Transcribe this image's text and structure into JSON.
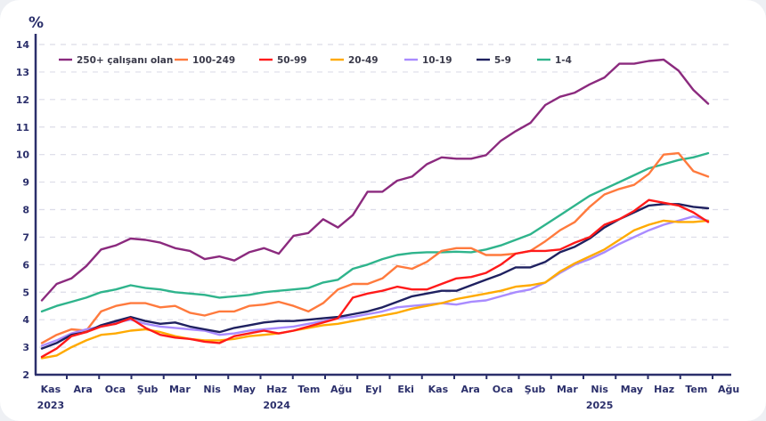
{
  "chart_data": {
    "type": "line",
    "title": "",
    "ylabel": "%",
    "xlabel": "",
    "ylim": [
      2,
      14
    ],
    "yticks": [
      2,
      3,
      4,
      5,
      6,
      7,
      8,
      9,
      10,
      11,
      12,
      13,
      14
    ],
    "grid": true,
    "legend_position": "top-left",
    "x_month_labels": [
      "Kas",
      "Ara",
      "Oca",
      "Şub",
      "Mar",
      "Nis",
      "May",
      "Haz",
      "Tem",
      "Ağu",
      "Eyl",
      "Eki",
      "Kas",
      "Ara",
      "Oca",
      "Şub",
      "Mar",
      "Nis",
      "May",
      "Haz",
      "Tem",
      "Ağu"
    ],
    "x_year_labels": [
      {
        "label": "2023",
        "month_index": 0
      },
      {
        "label": "2024",
        "month_index": 7
      },
      {
        "label": "2025",
        "month_index": 17
      }
    ],
    "points_per_series": 46,
    "series": [
      {
        "name": "250+ çalışanı olan",
        "color": "#8b2a7e",
        "values": [
          4.7,
          5.3,
          5.5,
          5.95,
          6.55,
          6.7,
          6.95,
          6.9,
          6.8,
          6.6,
          6.5,
          6.2,
          6.3,
          6.15,
          6.45,
          6.6,
          6.4,
          7.05,
          7.15,
          7.65,
          7.35,
          7.8,
          8.65,
          8.65,
          9.05,
          9.2,
          9.65,
          9.9,
          9.85,
          9.85,
          9.98,
          10.5,
          10.85,
          11.15,
          11.8,
          12.1,
          12.25,
          12.55,
          12.8,
          13.3,
          13.3,
          13.4,
          13.45,
          13.05,
          12.35,
          11.85
        ]
      },
      {
        "name": "100-249",
        "color": "#ff7a3d",
        "values": [
          3.15,
          3.45,
          3.65,
          3.6,
          4.3,
          4.5,
          4.6,
          4.6,
          4.45,
          4.5,
          4.25,
          4.15,
          4.3,
          4.3,
          4.5,
          4.55,
          4.65,
          4.5,
          4.3,
          4.6,
          5.1,
          5.3,
          5.3,
          5.5,
          5.95,
          5.85,
          6.1,
          6.5,
          6.6,
          6.6,
          6.35,
          6.35,
          6.4,
          6.5,
          6.85,
          7.25,
          7.55,
          8.1,
          8.55,
          8.75,
          8.9,
          9.3,
          10.0,
          10.05,
          9.4,
          9.2
        ]
      },
      {
        "name": "50-99",
        "color": "#ff1a1a",
        "values": [
          2.65,
          2.95,
          3.4,
          3.55,
          3.75,
          3.85,
          4.05,
          3.7,
          3.45,
          3.35,
          3.3,
          3.2,
          3.15,
          3.4,
          3.5,
          3.6,
          3.5,
          3.6,
          3.75,
          3.9,
          4.05,
          4.8,
          4.95,
          5.05,
          5.2,
          5.1,
          5.1,
          5.3,
          5.5,
          5.55,
          5.7,
          6.0,
          6.4,
          6.5,
          6.5,
          6.55,
          6.8,
          7.0,
          7.45,
          7.65,
          7.95,
          8.35,
          8.25,
          8.15,
          7.9,
          7.55
        ]
      },
      {
        "name": "20-49",
        "color": "#ffaa00",
        "values": [
          2.6,
          2.7,
          3.0,
          3.25,
          3.45,
          3.5,
          3.6,
          3.65,
          3.55,
          3.4,
          3.3,
          3.25,
          3.25,
          3.3,
          3.4,
          3.45,
          3.5,
          3.6,
          3.7,
          3.8,
          3.85,
          3.95,
          4.05,
          4.15,
          4.25,
          4.4,
          4.5,
          4.6,
          4.75,
          4.85,
          4.95,
          5.05,
          5.2,
          5.25,
          5.35,
          5.75,
          6.05,
          6.3,
          6.55,
          6.9,
          7.25,
          7.45,
          7.6,
          7.55,
          7.55,
          7.6
        ]
      },
      {
        "name": "10-19",
        "color": "#a98bff",
        "values": [
          3.05,
          3.25,
          3.5,
          3.65,
          3.75,
          3.9,
          4.0,
          3.85,
          3.75,
          3.7,
          3.65,
          3.6,
          3.45,
          3.5,
          3.6,
          3.65,
          3.7,
          3.75,
          3.85,
          3.95,
          4.05,
          4.1,
          4.2,
          4.3,
          4.45,
          4.5,
          4.55,
          4.6,
          4.55,
          4.65,
          4.7,
          4.85,
          5.0,
          5.1,
          5.35,
          5.7,
          6.0,
          6.2,
          6.45,
          6.75,
          7.0,
          7.25,
          7.45,
          7.6,
          7.75,
          7.6
        ]
      },
      {
        "name": "5-9",
        "color": "#1f2160",
        "values": [
          2.95,
          3.15,
          3.45,
          3.55,
          3.8,
          3.95,
          4.1,
          3.95,
          3.85,
          3.9,
          3.75,
          3.65,
          3.55,
          3.7,
          3.8,
          3.9,
          3.95,
          3.95,
          4.0,
          4.05,
          4.1,
          4.2,
          4.3,
          4.45,
          4.65,
          4.85,
          4.95,
          5.05,
          5.05,
          5.25,
          5.45,
          5.65,
          5.9,
          5.9,
          6.1,
          6.45,
          6.65,
          6.95,
          7.35,
          7.65,
          7.9,
          8.15,
          8.2,
          8.2,
          8.1,
          8.05
        ]
      },
      {
        "name": "1-4",
        "color": "#2fb48c",
        "values": [
          4.3,
          4.5,
          4.65,
          4.8,
          5.0,
          5.1,
          5.25,
          5.15,
          5.1,
          5.0,
          4.95,
          4.9,
          4.8,
          4.85,
          4.9,
          5.0,
          5.05,
          5.1,
          5.15,
          5.35,
          5.45,
          5.85,
          6.0,
          6.2,
          6.35,
          6.42,
          6.45,
          6.45,
          6.47,
          6.45,
          6.55,
          6.7,
          6.9,
          7.1,
          7.45,
          7.8,
          8.15,
          8.5,
          8.75,
          9.0,
          9.25,
          9.5,
          9.65,
          9.8,
          9.9,
          10.05
        ]
      }
    ]
  }
}
